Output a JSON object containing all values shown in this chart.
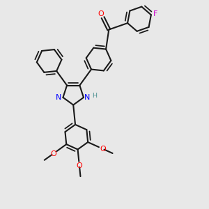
{
  "background_color": "#e8e8e8",
  "bond_color": "#1a1a1a",
  "bond_width": 1.5,
  "font_size_atom": 8,
  "figsize": [
    3.0,
    3.0
  ],
  "dpi": 100,
  "xlim": [
    0,
    10
  ],
  "ylim": [
    0,
    10
  ]
}
